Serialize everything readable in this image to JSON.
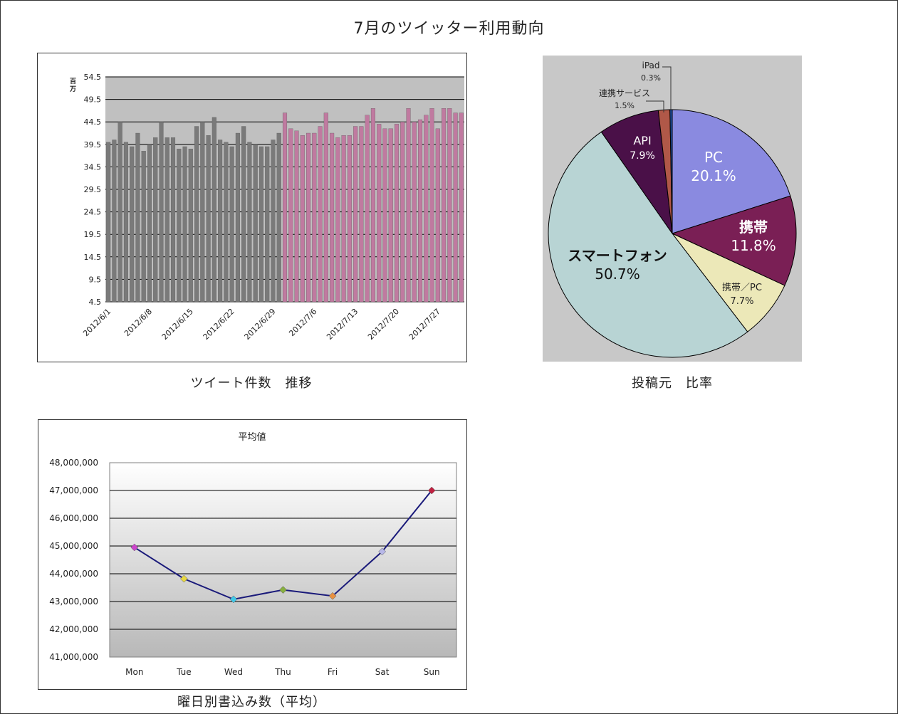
{
  "page": {
    "title": "7月のツイッター利用動向"
  },
  "captions": {
    "tweet_trend": "ツイート件数　推移",
    "source_ratio": "投稿元　比率",
    "weekday": "曜日別書込み数（平均）"
  },
  "chart_data": [
    {
      "id": "daily-tweets",
      "type": "bar",
      "title": "",
      "unit_label": "百万",
      "ylim": [
        4.5,
        54.5
      ],
      "y_ticks": [
        4.5,
        9.5,
        14.5,
        19.5,
        24.5,
        29.5,
        34.5,
        39.5,
        44.5,
        49.5,
        54.5
      ],
      "grid": true,
      "x_tick_labels": [
        "2012/6/1",
        "2012/6/8",
        "2012/6/15",
        "2012/6/22",
        "2012/6/29",
        "2012/7/6",
        "2012/7/13",
        "2012/7/20",
        "2012/7/27"
      ],
      "series": [
        {
          "period": "June",
          "color": "#7a7a7a",
          "values": [
            40.0,
            40.5,
            44.5,
            40.0,
            39.0,
            42.0,
            38.0,
            39.5,
            41.0,
            44.5,
            41.0,
            41.0,
            38.5,
            39.0,
            38.5,
            43.5,
            44.5,
            41.5,
            45.5,
            40.5,
            40.0,
            39.0,
            42.0,
            43.5,
            40.0,
            39.5,
            39.0,
            39.0,
            40.5,
            42.0
          ]
        },
        {
          "period": "July",
          "color": "#c07aa0",
          "values": [
            46.5,
            43.0,
            42.5,
            41.5,
            42.0,
            42.0,
            43.5,
            46.5,
            42.0,
            41.0,
            41.5,
            41.5,
            43.5,
            43.5,
            46.0,
            47.5,
            44.0,
            43.0,
            43.0,
            44.0,
            44.5,
            47.5,
            44.5,
            45.0,
            46.0,
            47.5,
            43.0,
            47.5,
            47.5,
            46.5,
            46.5
          ]
        }
      ]
    },
    {
      "id": "post-source",
      "type": "pie",
      "slices": [
        {
          "label": "PC",
          "value": 20.1,
          "pct_label": "20.1%",
          "color": "#8a8ae0"
        },
        {
          "label": "携帯",
          "value": 11.8,
          "pct_label": "11.8%",
          "color": "#7a1f55"
        },
        {
          "label": "携帯／PC",
          "value": 7.7,
          "pct_label": "7.7%",
          "color": "#ece8b8"
        },
        {
          "label": "スマートフォン",
          "value": 50.7,
          "pct_label": "50.7%",
          "color": "#b8d4d4"
        },
        {
          "label": "API",
          "value": 7.9,
          "pct_label": "7.9%",
          "color": "#4a1048"
        },
        {
          "label": "連携サービス",
          "value": 1.5,
          "pct_label": "1.5%",
          "color": "#b05848"
        },
        {
          "label": "iPad",
          "value": 0.3,
          "pct_label": "0.3%",
          "color": "#2050a0"
        }
      ]
    },
    {
      "id": "weekday-average",
      "type": "line",
      "title": "平均値",
      "categories": [
        "Mon",
        "Tue",
        "Wed",
        "Thu",
        "Fri",
        "Sat",
        "Sun"
      ],
      "values": [
        44950000,
        43820000,
        43080000,
        43420000,
        43200000,
        44800000,
        47000000
      ],
      "marker_colors": [
        "#cc44cc",
        "#e8d840",
        "#40c8e8",
        "#88b040",
        "#e89040",
        "#b8b8e8",
        "#c02040"
      ],
      "ylim": [
        41000000,
        48000000
      ],
      "y_tick_labels": [
        "48,000,000",
        "47,000,000",
        "46,000,000",
        "45,000,000",
        "44,000,000",
        "43,000,000",
        "42,000,000",
        "41,000,000"
      ],
      "line_color": "#1a1a7a",
      "grid": true
    }
  ]
}
